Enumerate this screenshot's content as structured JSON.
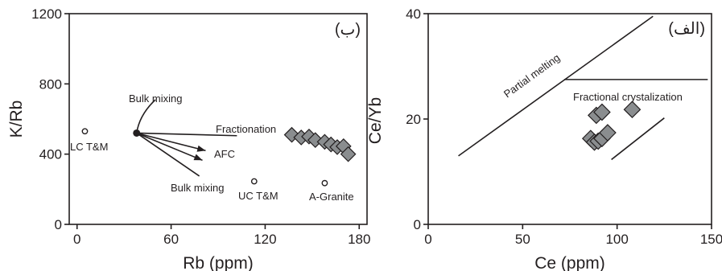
{
  "chart_data": [
    {
      "type": "scatter",
      "panel_label": "(ب)",
      "xlabel": "Rb (ppm)",
      "ylabel": "K/Rb",
      "xlim": [
        -5,
        185
      ],
      "ylim": [
        0,
        1200
      ],
      "xticks": [
        0,
        60,
        120,
        180
      ],
      "yticks": [
        0,
        400,
        800,
        1200
      ],
      "samples": [
        {
          "x": 137,
          "y": 510
        },
        {
          "x": 143,
          "y": 495
        },
        {
          "x": 148,
          "y": 500
        },
        {
          "x": 152,
          "y": 480
        },
        {
          "x": 158,
          "y": 470
        },
        {
          "x": 162,
          "y": 455
        },
        {
          "x": 166,
          "y": 440
        },
        {
          "x": 170,
          "y": 445
        },
        {
          "x": 173,
          "y": 400
        }
      ],
      "reference_points": [
        {
          "label": "LC T&M",
          "x": 5,
          "y": 530
        },
        {
          "label": "UC T&M",
          "x": 113,
          "y": 245
        },
        {
          "label": "A-Granite",
          "x": 158,
          "y": 235
        }
      ],
      "origin_point": {
        "x": 38,
        "y": 520
      },
      "vectors": [
        {
          "label": "Bulk mixing",
          "to": {
            "x": 50,
            "y": 710
          },
          "arrow": false
        },
        {
          "label": "Fractionation",
          "to": {
            "x": 102,
            "y": 505
          },
          "arrow": false
        },
        {
          "label": "AFC",
          "to": {
            "x": 82,
            "y": 420
          },
          "arrow": true
        },
        {
          "label": "",
          "to": {
            "x": 80,
            "y": 365
          },
          "arrow": true
        },
        {
          "label": "Bulk mixing",
          "to": {
            "x": 78,
            "y": 275
          },
          "arrow": false
        }
      ],
      "trend_line": {
        "from": {
          "x": 137,
          "y": 510
        },
        "to": {
          "x": 175,
          "y": 405
        }
      }
    },
    {
      "type": "scatter",
      "panel_label": "(الف)",
      "xlabel": "Ce (ppm)",
      "ylabel": "Ce/Yb",
      "xlim": [
        0,
        150
      ],
      "ylim": [
        0,
        40
      ],
      "xticks": [
        0,
        50,
        100,
        150
      ],
      "yticks": [
        0,
        20,
        40
      ],
      "samples": [
        {
          "x": 86,
          "y": 16.3
        },
        {
          "x": 88,
          "y": 15.6
        },
        {
          "x": 90,
          "y": 15.8
        },
        {
          "x": 92,
          "y": 16.3
        },
        {
          "x": 95,
          "y": 17.4
        },
        {
          "x": 89,
          "y": 20.7
        },
        {
          "x": 92,
          "y": 21.3
        },
        {
          "x": 108,
          "y": 21.8
        }
      ],
      "lines": [
        {
          "label": "Partial melting",
          "from": {
            "x": 16,
            "y": 13
          },
          "to": {
            "x": 119,
            "y": 39.5
          }
        },
        {
          "label": "Fractional crystalization",
          "from": {
            "x": 72,
            "y": 27.5
          },
          "to": {
            "x": 148,
            "y": 27.5
          }
        },
        {
          "label": "",
          "from": {
            "x": 97,
            "y": 12.3
          },
          "to": {
            "x": 125,
            "y": 20.2
          }
        }
      ]
    }
  ]
}
